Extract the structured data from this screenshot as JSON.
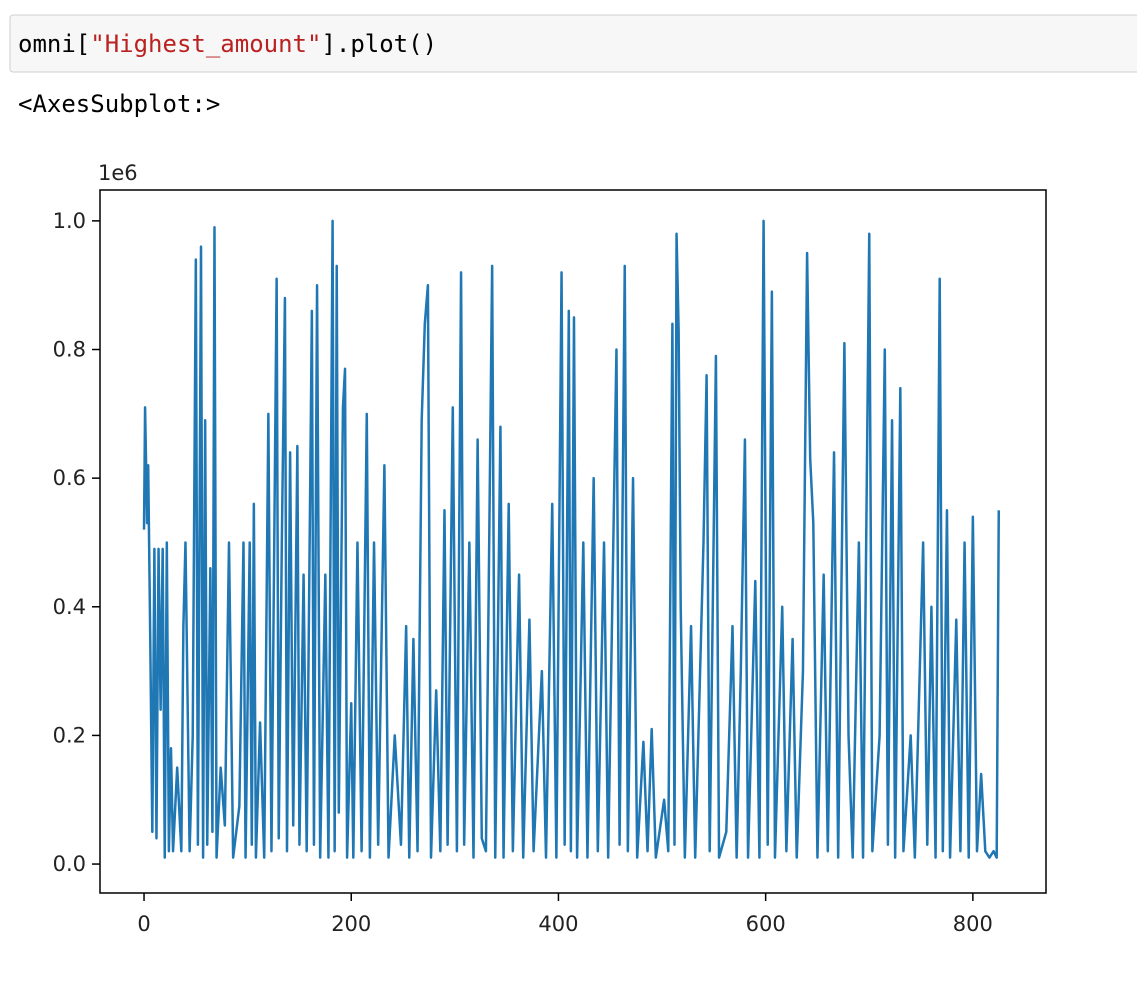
{
  "cell": {
    "code_parts": [
      "omni[",
      "\"Highest_amount\"",
      "].plot()"
    ]
  },
  "output_text": "<AxesSubplot:>",
  "chart_data": {
    "type": "line",
    "offset_label": "1e6",
    "color": "#1f77b4",
    "xlim": [
      -42.5,
      870.6
    ],
    "xticks": [
      0,
      200,
      400,
      600,
      800
    ],
    "ylim": [
      -45000,
      1048000
    ],
    "yticks": [
      {
        "value": 0,
        "label": "0.0"
      },
      {
        "value": 200000,
        "label": "0.2"
      },
      {
        "value": 400000,
        "label": "0.4"
      },
      {
        "value": 600000,
        "label": "0.6"
      },
      {
        "value": 800000,
        "label": "0.8"
      },
      {
        "value": 1000000,
        "label": "1.0"
      }
    ],
    "x": [
      0,
      1,
      3,
      4,
      6,
      8,
      10,
      12,
      14,
      16,
      18,
      20,
      22,
      24,
      26,
      28,
      32,
      36,
      38,
      40,
      44,
      47,
      50,
      52,
      55,
      57,
      59,
      61,
      64,
      66,
      68,
      70,
      74,
      78,
      82,
      86,
      92,
      96,
      98,
      102,
      104,
      106,
      108,
      112,
      116,
      120,
      123,
      128,
      130,
      133,
      136,
      138,
      141,
      144,
      148,
      150,
      154,
      157,
      162,
      164,
      167,
      170,
      175,
      178,
      182,
      184,
      186,
      188,
      192,
      194,
      196,
      200,
      202,
      206,
      210,
      215,
      218,
      222,
      226,
      232,
      236,
      242,
      248,
      253,
      256,
      260,
      264,
      268,
      271,
      274,
      277,
      282,
      286,
      290,
      293,
      298,
      302,
      306,
      309,
      314,
      318,
      322,
      326,
      330,
      336,
      339,
      344,
      347,
      352,
      356,
      362,
      366,
      372,
      376,
      384,
      388,
      394,
      398,
      403,
      406,
      410,
      412,
      415,
      418,
      424,
      428,
      434,
      438,
      444,
      448,
      456,
      459,
      464,
      467,
      472,
      476,
      482,
      486,
      490,
      494,
      502,
      506,
      510,
      512,
      514,
      516,
      518,
      522,
      528,
      532,
      540,
      543,
      546,
      552,
      555,
      562,
      568,
      572,
      576,
      580,
      583,
      590,
      594,
      598,
      600,
      602,
      606,
      609,
      616,
      620,
      626,
      630,
      636,
      640,
      643,
      646,
      650,
      656,
      660,
      666,
      670,
      676,
      680,
      684,
      690,
      694,
      700,
      703,
      710,
      715,
      718,
      722,
      725,
      730,
      733,
      740,
      744,
      752,
      756,
      760,
      764,
      768,
      771,
      775,
      778,
      784,
      788,
      792,
      796,
      800,
      804,
      808,
      812,
      816,
      820,
      823,
      825
    ],
    "values": [
      520000,
      710000,
      530000,
      620000,
      350000,
      50000,
      490000,
      40000,
      490000,
      240000,
      490000,
      10000,
      500000,
      20000,
      180000,
      20000,
      150000,
      20000,
      370000,
      500000,
      20000,
      200000,
      940000,
      30000,
      960000,
      10000,
      690000,
      30000,
      460000,
      50000,
      990000,
      10000,
      150000,
      60000,
      500000,
      10000,
      90000,
      500000,
      10000,
      500000,
      30000,
      560000,
      10000,
      220000,
      10000,
      700000,
      20000,
      910000,
      40000,
      500000,
      880000,
      20000,
      640000,
      60000,
      650000,
      30000,
      450000,
      20000,
      860000,
      30000,
      900000,
      10000,
      450000,
      10000,
      1000000,
      20000,
      930000,
      80000,
      710000,
      770000,
      10000,
      250000,
      10000,
      500000,
      20000,
      700000,
      10000,
      500000,
      30000,
      620000,
      10000,
      200000,
      30000,
      370000,
      10000,
      350000,
      20000,
      690000,
      840000,
      900000,
      10000,
      270000,
      20000,
      550000,
      30000,
      710000,
      20000,
      920000,
      30000,
      500000,
      10000,
      660000,
      40000,
      20000,
      930000,
      10000,
      680000,
      10000,
      560000,
      20000,
      450000,
      10000,
      380000,
      20000,
      300000,
      10000,
      560000,
      10000,
      920000,
      30000,
      860000,
      20000,
      850000,
      10000,
      500000,
      10000,
      600000,
      20000,
      500000,
      10000,
      800000,
      30000,
      930000,
      20000,
      600000,
      10000,
      190000,
      20000,
      210000,
      10000,
      100000,
      20000,
      840000,
      30000,
      980000,
      830000,
      400000,
      10000,
      370000,
      10000,
      500000,
      760000,
      20000,
      790000,
      10000,
      50000,
      370000,
      10000,
      300000,
      660000,
      10000,
      440000,
      10000,
      1000000,
      500000,
      30000,
      890000,
      10000,
      400000,
      20000,
      350000,
      10000,
      300000,
      950000,
      630000,
      530000,
      10000,
      450000,
      20000,
      640000,
      10000,
      810000,
      200000,
      10000,
      500000,
      10000,
      980000,
      20000,
      200000,
      800000,
      30000,
      690000,
      10000,
      740000,
      20000,
      200000,
      10000,
      500000,
      30000,
      400000,
      10000,
      910000,
      20000,
      550000,
      10000,
      380000,
      20000,
      500000,
      10000,
      540000,
      20000,
      140000,
      20000,
      10000,
      20000,
      10000,
      550000
    ]
  }
}
